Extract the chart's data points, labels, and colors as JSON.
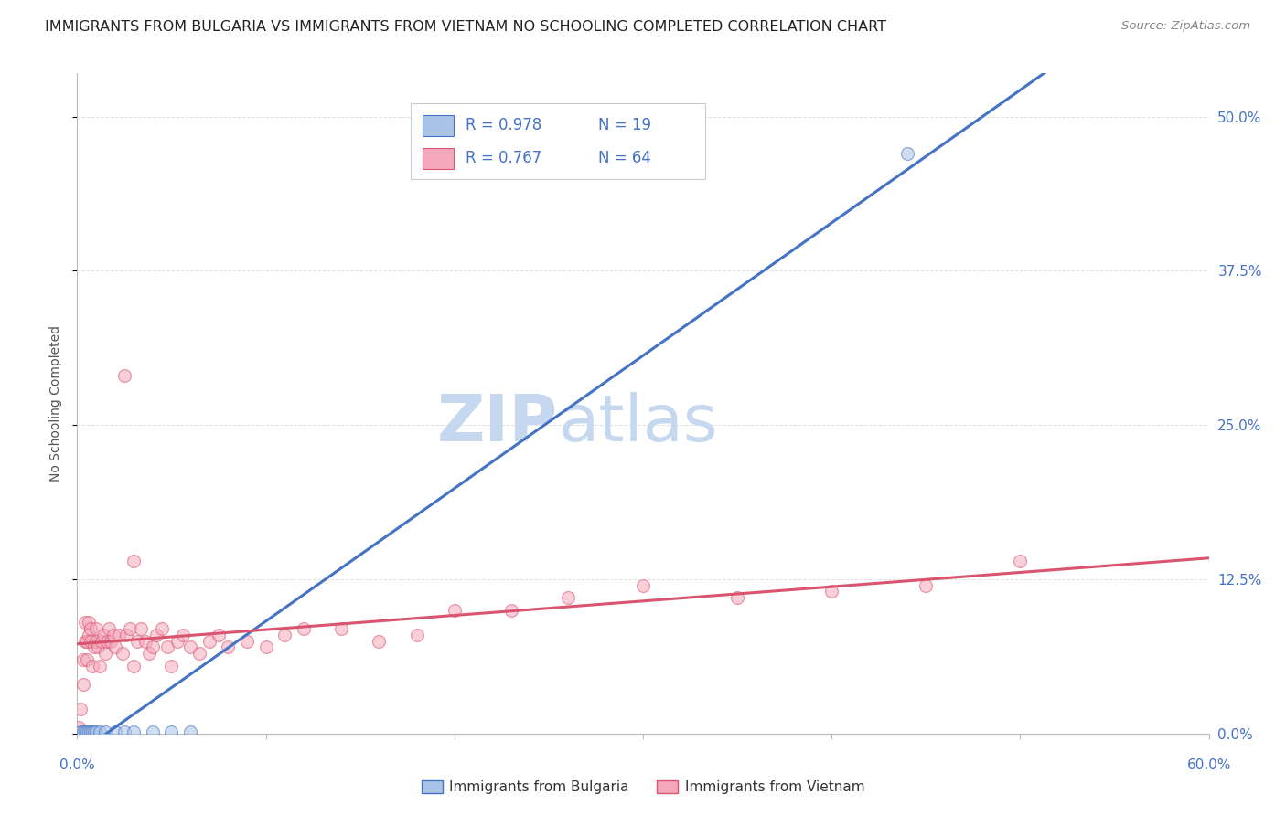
{
  "title": "IMMIGRANTS FROM BULGARIA VS IMMIGRANTS FROM VIETNAM NO SCHOOLING COMPLETED CORRELATION CHART",
  "source_text": "Source: ZipAtlas.com",
  "ylabel": "No Schooling Completed",
  "xlim": [
    0.0,
    0.6
  ],
  "ylim": [
    0.0,
    0.535
  ],
  "xticks": [
    0.0,
    0.1,
    0.2,
    0.3,
    0.4,
    0.5,
    0.6
  ],
  "xtick_labels": [
    "0.0%",
    "",
    "",
    "",
    "",
    "",
    "60.0%"
  ],
  "ytick_labels_right": [
    "0.0%",
    "12.5%",
    "25.0%",
    "37.5%",
    "50.0%"
  ],
  "yticks": [
    0.0,
    0.125,
    0.25,
    0.375,
    0.5
  ],
  "axis_tick_color": "#4472c4",
  "bg_color": "#ffffff",
  "bulgaria_color": "#aac4e8",
  "vietnam_color": "#f5a8bc",
  "bulgaria_line_color": "#4472c4",
  "vietnam_line_color": "#d9546e",
  "watermark_zip_color": "#c5d8f0",
  "watermark_atlas_color": "#c5d8f0",
  "legend_r_bulgaria": "R = 0.978",
  "legend_n_bulgaria": "N = 19",
  "legend_r_vietnam": "R = 0.767",
  "legend_n_vietnam": "N = 64",
  "legend_color": "#4472c4",
  "bulgaria_scatter_x": [
    0.001,
    0.002,
    0.003,
    0.004,
    0.005,
    0.006,
    0.007,
    0.008,
    0.009,
    0.01,
    0.012,
    0.015,
    0.02,
    0.025,
    0.03,
    0.04,
    0.05,
    0.44,
    0.06
  ],
  "bulgaria_scatter_y": [
    0.0005,
    0.001,
    0.001,
    0.001,
    0.001,
    0.001,
    0.001,
    0.001,
    0.001,
    0.001,
    0.001,
    0.001,
    0.001,
    0.001,
    0.001,
    0.001,
    0.001,
    0.47,
    0.001
  ],
  "vietnam_scatter_x": [
    0.001,
    0.002,
    0.003,
    0.003,
    0.004,
    0.004,
    0.005,
    0.005,
    0.006,
    0.006,
    0.007,
    0.007,
    0.008,
    0.009,
    0.01,
    0.01,
    0.011,
    0.012,
    0.013,
    0.014,
    0.015,
    0.016,
    0.017,
    0.018,
    0.019,
    0.02,
    0.022,
    0.024,
    0.026,
    0.028,
    0.03,
    0.032,
    0.034,
    0.036,
    0.038,
    0.04,
    0.042,
    0.045,
    0.048,
    0.05,
    0.053,
    0.056,
    0.06,
    0.065,
    0.07,
    0.075,
    0.08,
    0.09,
    0.1,
    0.11,
    0.12,
    0.14,
    0.16,
    0.18,
    0.2,
    0.23,
    0.26,
    0.3,
    0.35,
    0.4,
    0.45,
    0.5,
    0.03,
    0.025
  ],
  "vietnam_scatter_y": [
    0.005,
    0.02,
    0.04,
    0.06,
    0.075,
    0.09,
    0.06,
    0.075,
    0.08,
    0.09,
    0.075,
    0.085,
    0.055,
    0.07,
    0.075,
    0.085,
    0.07,
    0.055,
    0.075,
    0.08,
    0.065,
    0.075,
    0.085,
    0.075,
    0.08,
    0.07,
    0.08,
    0.065,
    0.08,
    0.085,
    0.055,
    0.075,
    0.085,
    0.075,
    0.065,
    0.07,
    0.08,
    0.085,
    0.07,
    0.055,
    0.075,
    0.08,
    0.07,
    0.065,
    0.075,
    0.08,
    0.07,
    0.075,
    0.07,
    0.08,
    0.085,
    0.085,
    0.075,
    0.08,
    0.1,
    0.1,
    0.11,
    0.12,
    0.11,
    0.115,
    0.12,
    0.14,
    0.14,
    0.29
  ],
  "grid_color": "#cccccc",
  "grid_alpha": 0.6,
  "scatter_size": 100,
  "scatter_alpha": 0.55,
  "title_fontsize": 11.5,
  "ylabel_fontsize": 10,
  "tick_fontsize": 11,
  "legend_fontsize": 12
}
